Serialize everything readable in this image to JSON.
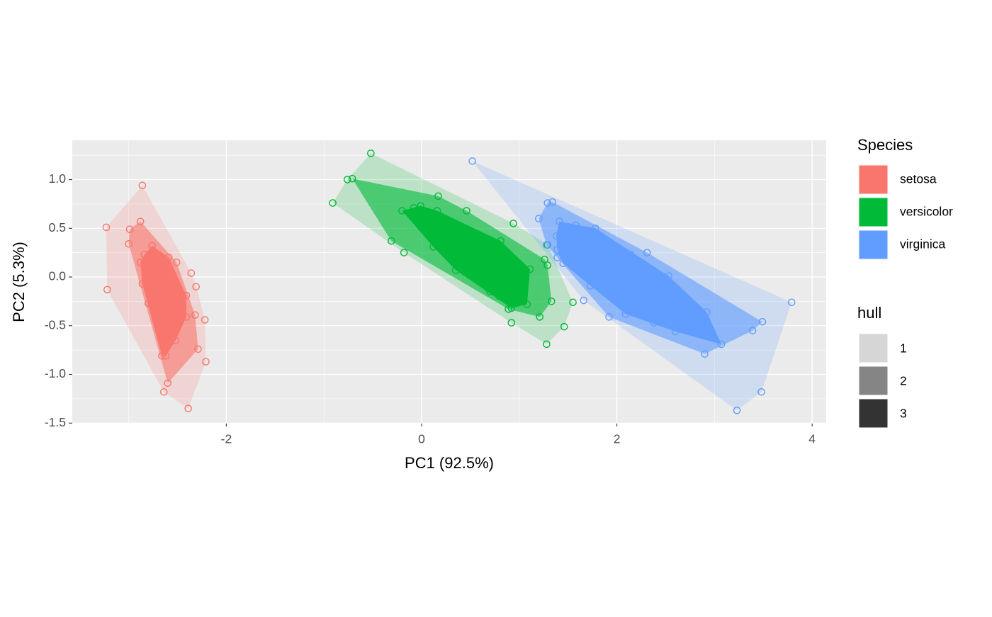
{
  "chart_data": {
    "type": "scatter",
    "xlabel": "PC1 (92.5%)",
    "ylabel": "PC2 (5.3%)",
    "xlim": [
      -3.578,
      4.144
    ],
    "ylim": [
      -1.498,
      1.404
    ],
    "xticks": [
      -2,
      0,
      2,
      4
    ],
    "yticks": [
      {
        "value": -1.5,
        "label": "-1.5"
      },
      {
        "value": -1,
        "label": "-1.0"
      },
      -0.5,
      {
        "value": 0,
        "label": "0.0"
      },
      0.5,
      {
        "value": 1,
        "label": "1.0"
      }
    ],
    "minor_xticks": [
      -3,
      -1,
      1,
      3
    ],
    "minor_yticks": [
      -1.25,
      -0.75,
      -0.25,
      0.25,
      0.75,
      1.25
    ],
    "grid": true,
    "legend_title": "Species",
    "series": [
      {
        "name": "setosa",
        "color": "#F8766D",
        "x": [
          -3.23,
          -3.22,
          -2.86,
          -2.99,
          -2.88,
          -3.0,
          -2.84,
          -2.76,
          -2.88,
          -2.86,
          -2.8,
          -2.59,
          -2.51,
          -2.36,
          -2.31,
          -2.41,
          -2.41,
          -2.32,
          -2.22,
          -2.52,
          -2.29,
          -2.21,
          -2.66,
          -2.62,
          -2.6,
          -2.64,
          -2.39,
          -2.7,
          -2.65,
          -2.6,
          -2.55,
          -2.7,
          -2.75,
          -2.6,
          -2.5
        ],
        "y": [
          0.51,
          -0.13,
          0.94,
          0.49,
          0.57,
          0.34,
          0.23,
          0.32,
          0.15,
          -0.07,
          -0.27,
          0.2,
          0.15,
          0.04,
          -0.1,
          -0.19,
          -0.41,
          -0.39,
          -0.44,
          -0.65,
          -0.74,
          -0.87,
          -0.81,
          -0.81,
          -1.09,
          -1.18,
          -1.35,
          0.1,
          -0.1,
          -0.3,
          -0.5,
          -0.2,
          0.0,
          0.05,
          -0.2
        ]
      },
      {
        "name": "versicolor",
        "color": "#00BA38",
        "x": [
          -0.52,
          -0.76,
          -0.71,
          -0.91,
          -0.31,
          -0.18,
          -0.2,
          -0.08,
          -0.01,
          0.17,
          0.16,
          0.46,
          0.12,
          0.35,
          0.81,
          0.94,
          0.7,
          0.89,
          0.92,
          0.92,
          1.08,
          1.11,
          1.26,
          1.29,
          1.29,
          1.33,
          1.21,
          1.55,
          1.46,
          1.28,
          0.3,
          0.5,
          0.7,
          0.9,
          0.6,
          0.2,
          1.0,
          0.8
        ],
        "y": [
          1.27,
          1.0,
          1.01,
          0.76,
          0.37,
          0.25,
          0.68,
          0.71,
          0.73,
          0.83,
          0.68,
          0.68,
          0.31,
          0.07,
          0.37,
          0.55,
          -0.15,
          -0.33,
          -0.32,
          -0.47,
          -0.28,
          0.08,
          0.18,
          0.12,
          0.33,
          -0.25,
          -0.41,
          -0.26,
          -0.51,
          -0.69,
          0.4,
          0.2,
          0.1,
          0.0,
          0.4,
          0.5,
          -0.1,
          -0.2
        ]
      },
      {
        "name": "virginica",
        "color": "#619CFF",
        "x": [
          0.52,
          1.34,
          1.29,
          1.2,
          1.41,
          1.38,
          1.28,
          1.39,
          1.39,
          1.45,
          1.58,
          1.78,
          2.31,
          2.14,
          2.53,
          1.73,
          1.66,
          1.92,
          2.09,
          2.38,
          2.6,
          2.92,
          2.9,
          3.07,
          3.39,
          3.49,
          3.79,
          3.48,
          3.23,
          1.8,
          2.0,
          2.2,
          2.5,
          1.6,
          2.7,
          2.0,
          1.7
        ],
        "y": [
          1.19,
          0.77,
          0.76,
          0.6,
          0.57,
          0.42,
          0.33,
          0.28,
          0.2,
          0.14,
          0.53,
          0.5,
          0.25,
          0.23,
          0.01,
          -0.09,
          -0.24,
          -0.41,
          -0.38,
          -0.47,
          -0.56,
          -0.36,
          -0.79,
          -0.69,
          -0.55,
          -0.46,
          -0.26,
          -1.18,
          -1.37,
          0.3,
          0.1,
          0.0,
          -0.2,
          0.2,
          -0.3,
          -0.2,
          0.35
        ]
      }
    ],
    "hull_legend": {
      "title": "hull",
      "levels": [
        "1",
        "2",
        "3"
      ],
      "alpha": [
        0.2,
        0.6,
        1
      ],
      "color": "#333333"
    }
  }
}
